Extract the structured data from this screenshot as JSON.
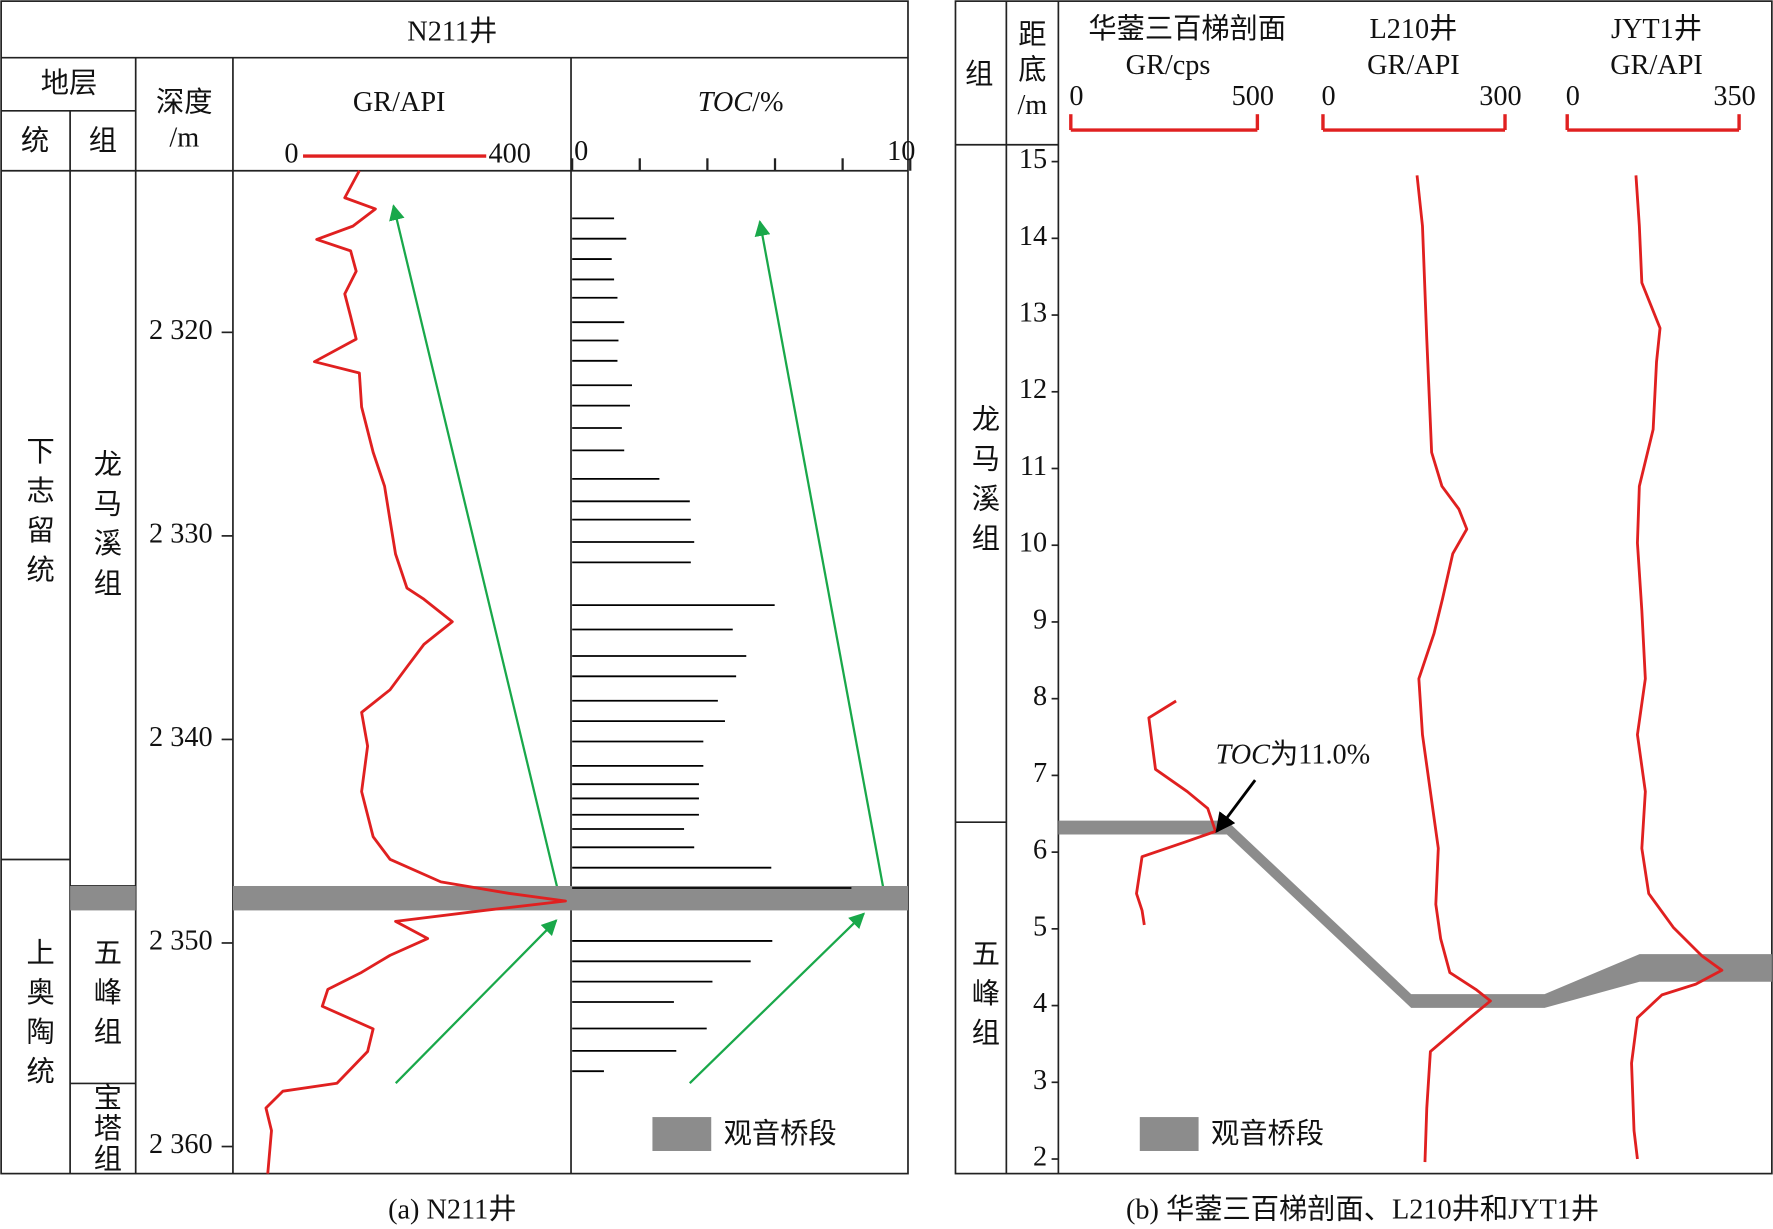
{
  "chart_data": [
    {
      "type": "well-log",
      "caption": "(a) N211井",
      "title": "N211井",
      "strata_header": "地层",
      "column_headers": [
        "统",
        "组"
      ],
      "ylabel": [
        "深度",
        "/m"
      ],
      "yaxis_inverted": true,
      "ylim": [
        2312.06,
        2361.33
      ],
      "yticks": [
        {
          "value": 2320,
          "label": "2 320"
        },
        {
          "value": 2330,
          "label": "2 330"
        },
        {
          "value": 2340,
          "label": "2 340"
        },
        {
          "value": 2350,
          "label": "2 350"
        },
        {
          "value": 2360,
          "label": "2 360"
        }
      ],
      "series_units": [
        {
          "name": "下志留统",
          "base": 2345.9
        },
        {
          "name": "上奥陶统"
        }
      ],
      "formations": [
        {
          "name": "龙马溪组",
          "base": 2347.2
        },
        {
          "name": "五峰组",
          "top": 2348.4,
          "base": 2356.9
        },
        {
          "name": "宝塔组"
        }
      ],
      "marker_bed": {
        "name": "观音桥段",
        "top": 2347.2,
        "base": 2348.4,
        "color": "#8c8c8c"
      },
      "tracks": [
        {
          "kind": "curve",
          "xlabel": [
            "GR/API"
          ],
          "xlim": [
            0,
            400
          ],
          "xticks": [
            0,
            400
          ],
          "color": "#e02020",
          "depth": [
            2312.06,
            2313.39,
            2313.94,
            2314.78,
            2315.44,
            2316.0,
            2317.0,
            2318.11,
            2319.22,
            2320.33,
            2321.44,
            2322.0,
            2323.67,
            2325.89,
            2327.56,
            2329.22,
            2330.89,
            2332.56,
            2333.11,
            2334.22,
            2335.33,
            2336.44,
            2337.56,
            2338.67,
            2340.33,
            2342.56,
            2344.78,
            2345.89,
            2347.0,
            2347.56,
            2347.94,
            2348.39,
            2348.94,
            2349.78,
            2350.61,
            2351.44,
            2352.28,
            2353.11,
            2354.22,
            2355.33,
            2356.89,
            2357.28,
            2358.11,
            2359.22,
            2361.33
          ],
          "values": [
            123,
            91,
            158,
            109,
            30,
            104,
            116,
            91,
            104,
            116,
            25,
            123,
            128,
            153,
            178,
            190,
            202,
            227,
            264,
            326,
            264,
            227,
            190,
            128,
            141,
            128,
            153,
            190,
            301,
            449,
            573,
            400,
            202,
            272,
            190,
            128,
            54,
            42,
            153,
            141,
            74,
            -44,
            -81,
            -69,
            -77
          ]
        },
        {
          "kind": "bars",
          "xlabel": [
            "TOC",
            "/%"
          ],
          "xlim": [
            0,
            10
          ],
          "xticks": [
            0,
            10
          ],
          "xminor_ticks": [
            2,
            4,
            6,
            8
          ],
          "color": "#000000",
          "depth": [
            2314.4,
            2315.4,
            2316.4,
            2317.4,
            2318.3,
            2319.5,
            2320.4,
            2321.4,
            2322.6,
            2323.6,
            2324.7,
            2325.8,
            2327.2,
            2328.3,
            2329.2,
            2330.3,
            2331.3,
            2333.4,
            2334.6,
            2335.9,
            2336.9,
            2338.1,
            2339.1,
            2340.1,
            2341.3,
            2342.2,
            2342.9,
            2343.7,
            2344.4,
            2345.3,
            2346.3,
            2347.3,
            2349.9,
            2350.9,
            2351.9,
            2352.9,
            2354.2,
            2355.3,
            2356.3
          ],
          "values": [
            1.24,
            1.6,
            1.17,
            1.24,
            1.34,
            1.54,
            1.37,
            1.34,
            1.77,
            1.71,
            1.47,
            1.54,
            2.58,
            3.48,
            3.51,
            3.61,
            3.51,
            5.99,
            4.75,
            5.15,
            4.85,
            4.31,
            4.52,
            3.88,
            3.88,
            3.75,
            3.75,
            3.75,
            3.31,
            3.61,
            5.89,
            8.26,
            5.92,
            5.28,
            4.15,
            3.01,
            3.98,
            3.08,
            0.94
          ]
        }
      ]
    },
    {
      "type": "well-log",
      "caption": "(b) 华蓥三百梯剖面、L210井和JYT1井",
      "column_headers": [
        "组"
      ],
      "ylabel": [
        "距",
        "底",
        "/m"
      ],
      "yaxis_inverted": false,
      "ylim": [
        1.81,
        15.22
      ],
      "yticks": [
        2,
        3,
        4,
        5,
        6,
        7,
        8,
        9,
        10,
        11,
        12,
        13,
        14,
        15
      ],
      "formations": [
        {
          "name": "龙马溪组",
          "base": 6.39
        },
        {
          "name": "五峰组"
        }
      ],
      "marker_bed": {
        "name": "观音桥段",
        "color": "#8c8c8c",
        "intervals": [
          [
            6.23,
            6.41
          ],
          [
            3.97,
            4.15
          ],
          [
            4.31,
            4.67
          ]
        ]
      },
      "annotation": {
        "parts": [
          "TOC",
          "为11.0%"
        ],
        "at": 6.27
      },
      "tracks": [
        {
          "kind": "curve",
          "title": "华蓥三百梯剖面",
          "xlabel": [
            "GR/cps"
          ],
          "xlim": [
            0,
            500
          ],
          "xticks": [
            0,
            500
          ],
          "color": "#e02020",
          "depth": [
            7.97,
            7.75,
            7.08,
            6.79,
            6.57,
            6.27,
            6.13,
            5.94,
            5.46,
            5.24,
            5.05
          ],
          "values": [
            282,
            209,
            227,
            312,
            367,
            388,
            306,
            191,
            176,
            191,
            197
          ]
        },
        {
          "kind": "curve",
          "title": "L210井",
          "xlabel": [
            "GR/API"
          ],
          "xlim": [
            0,
            300
          ],
          "xticks": [
            0,
            300
          ],
          "color": "#e02020",
          "depth": [
            14.82,
            14.16,
            12.69,
            11.21,
            10.77,
            10.47,
            10.21,
            9.89,
            9.3,
            8.85,
            8.26,
            7.53,
            6.79,
            6.05,
            5.32,
            4.87,
            4.43,
            4.21,
            4.06,
            3.84,
            3.4,
            2.66,
            1.96
          ],
          "values": [
            155,
            164,
            171,
            179,
            196,
            224,
            237,
            214,
            197,
            183,
            158,
            164,
            177,
            190,
            186,
            194,
            209,
            252,
            276,
            242,
            177,
            171,
            168
          ]
        },
        {
          "kind": "curve",
          "title": "JYT1井",
          "xlabel": [
            "GR/API"
          ],
          "xlim": [
            0,
            350
          ],
          "xticks": [
            0,
            350
          ],
          "color": "#e02020",
          "depth": [
            14.82,
            14.16,
            13.42,
            12.83,
            12.39,
            11.51,
            10.77,
            10.03,
            9.15,
            8.26,
            7.53,
            6.79,
            6.05,
            5.46,
            5.02,
            4.65,
            4.46,
            4.28,
            4.14,
            3.84,
            3.25,
            2.37,
            2.0
          ],
          "values": [
            140,
            147,
            152,
            189,
            182,
            175,
            147,
            143,
            152,
            159,
            143,
            159,
            152,
            166,
            216,
            274,
            315,
            262,
            193,
            143,
            131,
            136,
            143
          ]
        }
      ]
    }
  ]
}
